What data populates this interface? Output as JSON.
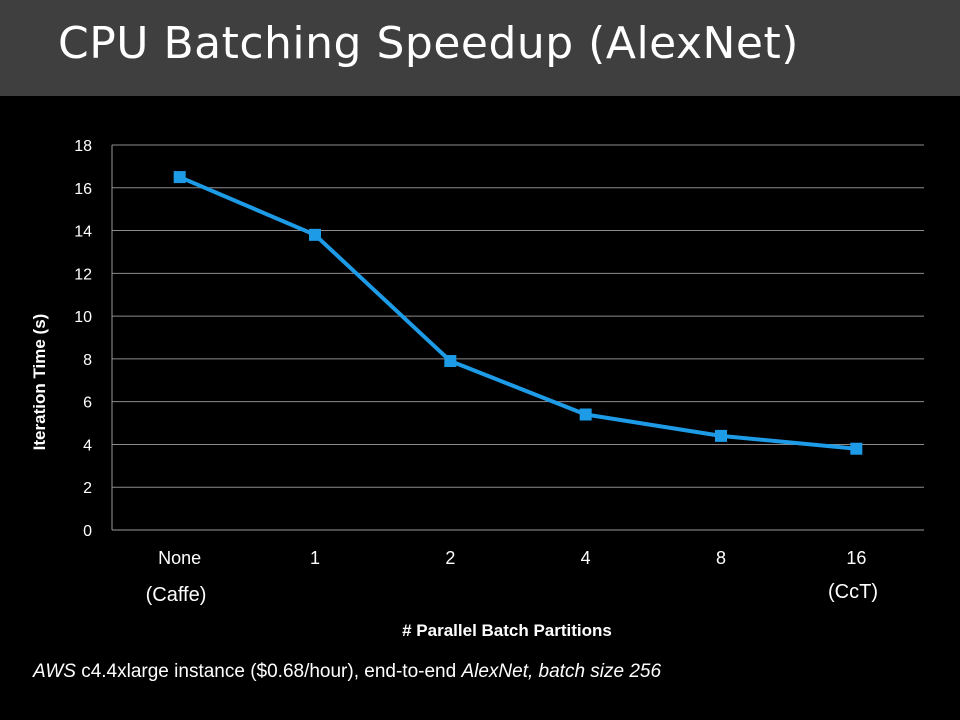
{
  "slide": {
    "title": "CPU Batching Speedup (AlexNet)"
  },
  "chart_data": {
    "type": "line",
    "title": "",
    "xlabel": "# Parallel Batch Partitions",
    "ylabel": "Iteration Time (s)",
    "categories": [
      "None",
      "1",
      "2",
      "4",
      "8",
      "16"
    ],
    "series": [
      {
        "values": [
          16.5,
          13.8,
          7.9,
          5.4,
          4.4,
          3.8
        ],
        "color": "#1e9be6"
      }
    ],
    "ylim": [
      0,
      18
    ],
    "yticks": [
      0,
      2,
      4,
      6,
      8,
      10,
      12,
      14,
      16,
      18
    ],
    "grid": true,
    "marker": "square",
    "annotations": {
      "none": "(Caffe)",
      "sixteen": "(CcT)"
    }
  },
  "footnote": {
    "part1": "AWS",
    "part2": " c4.4xlarge instance ($0.68/hour), end-to-end ",
    "part3": "AlexNet",
    "part4": ", batch size 256"
  }
}
